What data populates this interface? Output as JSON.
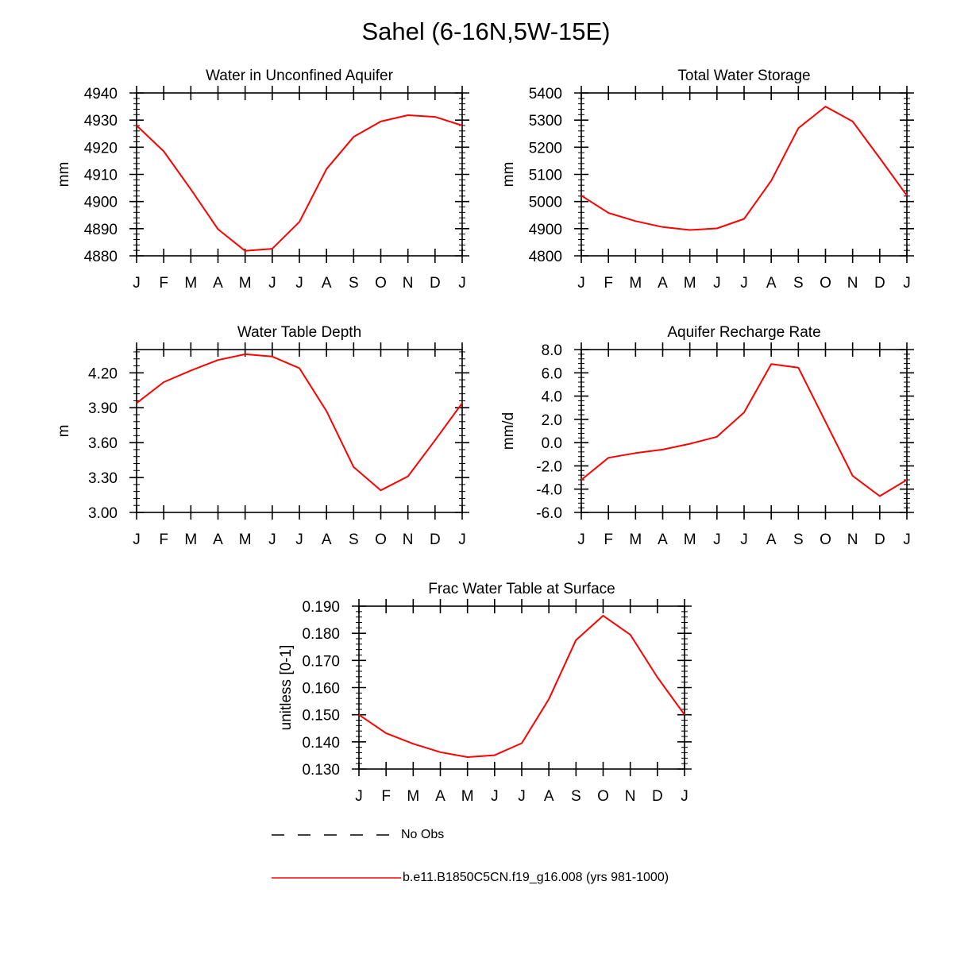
{
  "page_title": "Sahel (6-16N,5W-15E)",
  "legend": {
    "obs_label": "No Obs",
    "model_label": "b.e11.B1850C5CN.f19_g16.008 (yrs 981-1000)",
    "obs_color": "#000000",
    "model_color": "#ff0000"
  },
  "chart_data": [
    {
      "type": "line",
      "title": "Water in Unconfined Aquifer",
      "ylabel": "mm",
      "xlabel": "",
      "categories": [
        "J",
        "F",
        "M",
        "A",
        "M",
        "J",
        "J",
        "A",
        "S",
        "O",
        "N",
        "D",
        "J"
      ],
      "ylim": [
        4880,
        4940
      ],
      "yticks": [
        4880,
        4890,
        4900,
        4910,
        4920,
        4930,
        4940
      ],
      "ytick_labels": [
        "4880",
        "4890",
        "4900",
        "4910",
        "4920",
        "4930",
        "4940"
      ],
      "minor_step": 2,
      "series": [
        {
          "name": "b.e11.B1850C5CN.f19_g16.008 (yrs 981-1000)",
          "color": "#ff0000",
          "values": [
            4928,
            4918.5,
            4904.5,
            4889.8,
            4881.8,
            4882.6,
            4892.5,
            4912,
            4923.8,
            4929.5,
            4931.8,
            4931.2,
            4928
          ]
        }
      ]
    },
    {
      "type": "line",
      "title": "Total Water Storage",
      "ylabel": "mm",
      "xlabel": "",
      "categories": [
        "J",
        "F",
        "M",
        "A",
        "M",
        "J",
        "J",
        "A",
        "S",
        "O",
        "N",
        "D",
        "J"
      ],
      "ylim": [
        4800,
        5400
      ],
      "yticks": [
        4800,
        4900,
        5000,
        5100,
        5200,
        5300,
        5400
      ],
      "ytick_labels": [
        "4800",
        "4900",
        "5000",
        "5100",
        "5200",
        "5300",
        "5400"
      ],
      "minor_step": 20,
      "series": [
        {
          "name": "b.e11.B1850C5CN.f19_g16.008 (yrs 981-1000)",
          "color": "#ff0000",
          "values": [
            5022,
            4958,
            4928,
            4906,
            4895,
            4901,
            4936,
            5077,
            5270,
            5350,
            5295,
            5160,
            5022
          ]
        }
      ]
    },
    {
      "type": "line",
      "title": "Water Table Depth",
      "ylabel": "m",
      "xlabel": "",
      "categories": [
        "J",
        "F",
        "M",
        "A",
        "M",
        "J",
        "J",
        "A",
        "S",
        "O",
        "N",
        "D",
        "J"
      ],
      "ylim": [
        3.0,
        4.4
      ],
      "yticks": [
        3.0,
        3.3,
        3.6,
        3.9,
        4.2
      ],
      "ytick_labels": [
        "3.00",
        "3.30",
        "3.60",
        "3.90",
        "4.20"
      ],
      "minor_step": 0.06,
      "series": [
        {
          "name": "b.e11.B1850C5CN.f19_g16.008 (yrs 981-1000)",
          "color": "#ff0000",
          "values": [
            3.94,
            4.12,
            4.22,
            4.31,
            4.36,
            4.34,
            4.24,
            3.87,
            3.39,
            3.19,
            3.31,
            3.62,
            3.94
          ]
        }
      ]
    },
    {
      "type": "line",
      "title": "Aquifer Recharge Rate",
      "ylabel": "mm/d",
      "xlabel": "",
      "categories": [
        "J",
        "F",
        "M",
        "A",
        "M",
        "J",
        "J",
        "A",
        "S",
        "O",
        "N",
        "D",
        "J"
      ],
      "ylim": [
        -6.0,
        8.0
      ],
      "yticks": [
        -6.0,
        -4.0,
        -2.0,
        0.0,
        2.0,
        4.0,
        6.0,
        8.0
      ],
      "ytick_labels": [
        "-6.0",
        "-4.0",
        "-2.0",
        "0.0",
        "2.0",
        "4.0",
        "6.0",
        "8.0"
      ],
      "minor_step": 0.4,
      "series": [
        {
          "name": "b.e11.B1850C5CN.f19_g16.008 (yrs 981-1000)",
          "color": "#ff0000",
          "values": [
            -3.2,
            -1.3,
            -0.9,
            -0.6,
            -0.1,
            0.5,
            2.6,
            6.75,
            6.45,
            1.8,
            -2.85,
            -4.6,
            -3.2
          ]
        }
      ]
    },
    {
      "type": "line",
      "title": "Frac Water Table at Surface",
      "ylabel": "unitless [0-1]",
      "xlabel": "",
      "categories": [
        "J",
        "F",
        "M",
        "A",
        "M",
        "J",
        "J",
        "A",
        "S",
        "O",
        "N",
        "D",
        "J"
      ],
      "ylim": [
        0.13,
        0.19
      ],
      "yticks": [
        0.13,
        0.14,
        0.15,
        0.16,
        0.17,
        0.18,
        0.19
      ],
      "ytick_labels": [
        "0.130",
        "0.140",
        "0.150",
        "0.160",
        "0.170",
        "0.180",
        "0.190"
      ],
      "minor_step": 0.002,
      "series": [
        {
          "name": "b.e11.B1850C5CN.f19_g16.008 (yrs 981-1000)",
          "color": "#ff0000",
          "values": [
            0.15,
            0.1432,
            0.1393,
            0.1362,
            0.1344,
            0.1351,
            0.1395,
            0.1558,
            0.1775,
            0.1865,
            0.1795,
            0.1638,
            0.15
          ]
        }
      ]
    }
  ]
}
